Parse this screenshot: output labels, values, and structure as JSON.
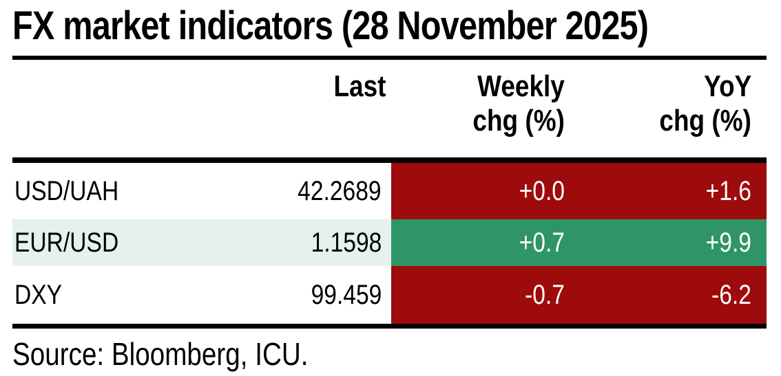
{
  "title": "FX market indicators (28 November 2025)",
  "source_note": "Source: Bloomberg, ICU.",
  "colors": {
    "negative_red": "#9E0B0C",
    "positive_green": "#2F9566",
    "alt_row_mint": "#E4F1EE",
    "rule_black": "#000000",
    "cell_text_light": "#FFFFFF",
    "text_dark": "#000000"
  },
  "header": {
    "last": "Last",
    "weekly_line1": "Weekly",
    "weekly_line2": "chg (%)",
    "yoy_line1": "YoY",
    "yoy_line2": "chg (%)"
  },
  "rows": [
    {
      "name": "USD/UAH",
      "last": "42.2689",
      "weekly": "+0.0",
      "yoy": "+1.6",
      "weekly_tone": "negative",
      "yoy_tone": "negative",
      "row_tone": "plain"
    },
    {
      "name": "EUR/USD",
      "last": "1.1598",
      "weekly": "+0.7",
      "yoy": "+9.9",
      "weekly_tone": "positive",
      "yoy_tone": "positive",
      "row_tone": "alt"
    },
    {
      "name": "DXY",
      "last": "99.459",
      "weekly": "-0.7",
      "yoy": "-6.2",
      "weekly_tone": "negative",
      "yoy_tone": "negative",
      "row_tone": "plain"
    }
  ],
  "chart_data": {
    "type": "table",
    "title": "FX market indicators (28 November 2025)",
    "columns": [
      "",
      "Last",
      "Weekly chg (%)",
      "YoY chg (%)"
    ],
    "rows": [
      [
        "USD/UAH",
        42.2689,
        0.0,
        1.6
      ],
      [
        "EUR/USD",
        1.1598,
        0.7,
        9.9
      ],
      [
        "DXY",
        99.459,
        -0.7,
        -6.2
      ]
    ],
    "cell_color_rule": "Weekly and YoY change cells: dark red background = adverse/negative move, green background = positive move; values shown white with explicit +/- sign",
    "source": "Source: Bloomberg, ICU."
  }
}
